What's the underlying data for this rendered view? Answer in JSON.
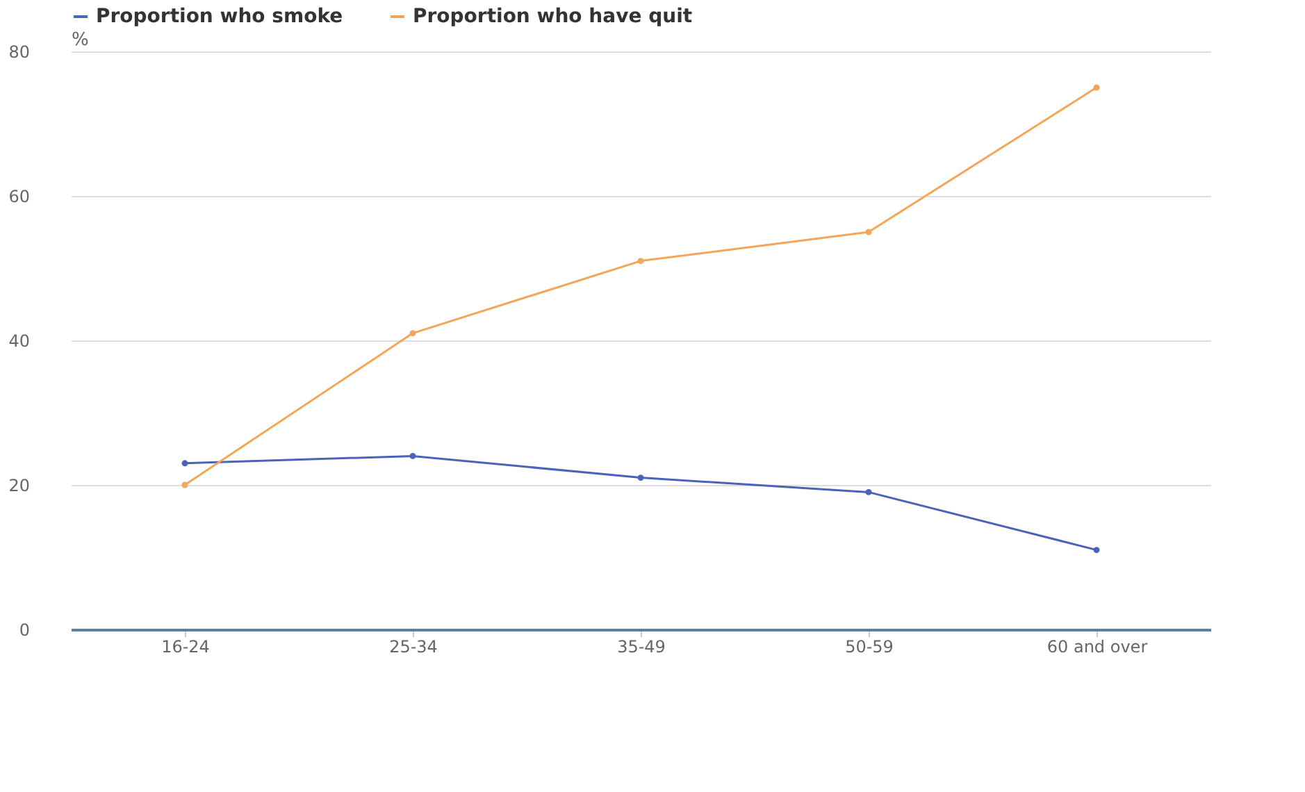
{
  "chart_data": {
    "type": "line",
    "ylabel": "%",
    "categories": [
      "16-24",
      "25-34",
      "35-49",
      "50-59",
      "60 and over"
    ],
    "series": [
      {
        "name": "Proportion who smoke",
        "color": "#4a63b8",
        "values": [
          23,
          24,
          21,
          19,
          11
        ]
      },
      {
        "name": "Proportion who have quit",
        "color": "#f5a55a",
        "values": [
          20,
          41,
          51,
          55,
          75
        ]
      }
    ],
    "ylim": [
      0,
      80
    ],
    "yticks": [
      0,
      20,
      40,
      60,
      80
    ],
    "grid": "y",
    "legend": "top",
    "marker": "circle",
    "line_style": "solid"
  }
}
